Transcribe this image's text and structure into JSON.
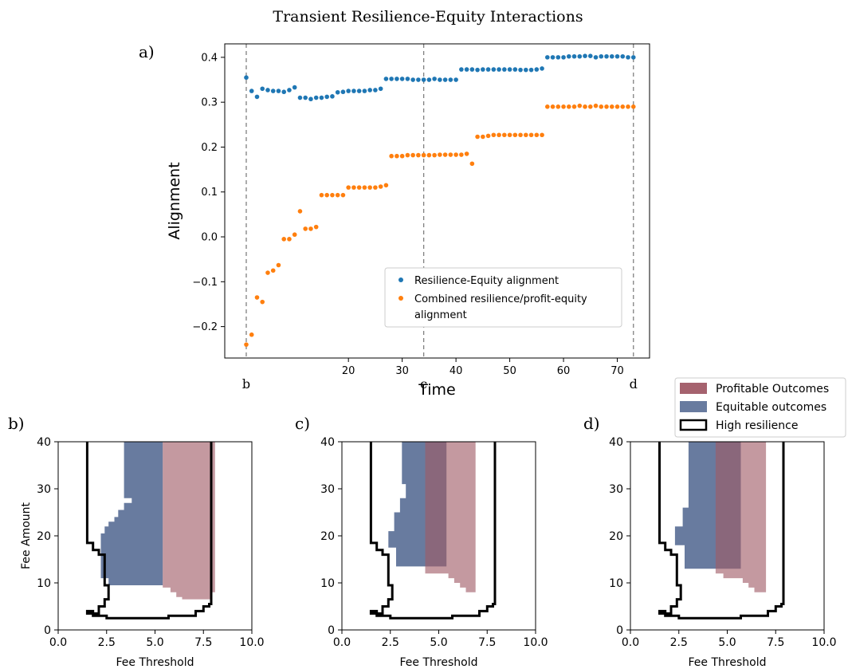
{
  "figure": {
    "title": "Transient Resilience-Equity Interactions",
    "panel_labels": {
      "a": "a)",
      "b": "b)",
      "c": "c)",
      "d": "d)"
    }
  },
  "colors": {
    "series_blue": "#1f77b4",
    "series_orange": "#ff7f0e",
    "profitable": "#a05a66",
    "equitable": "#5b7097",
    "overlap": "#3d4a70",
    "resilience_line": "#000000"
  },
  "chart_data": [
    {
      "type": "scatter",
      "panel": "a)",
      "title": "",
      "xlabel": "Time",
      "ylabel": "Alignment",
      "xlim": [
        -3,
        76
      ],
      "ylim": [
        -0.27,
        0.43
      ],
      "x_ticks": [
        20,
        30,
        40,
        50,
        60,
        70
      ],
      "y_ticks": [
        -0.2,
        -0.1,
        0.0,
        0.1,
        0.2,
        0.3,
        0.4
      ],
      "y_tick_labels": [
        "−0.2",
        "−0.1",
        "0.0",
        "0.1",
        "0.2",
        "0.3",
        "0.4"
      ],
      "grid": false,
      "legend_position": "lower-right",
      "vlines": [
        {
          "x": 1,
          "label": "b"
        },
        {
          "x": 34,
          "label": "c"
        },
        {
          "x": 73,
          "label": "d"
        }
      ],
      "series": [
        {
          "name": "Resilience-Equity alignment",
          "color": "#1f77b4",
          "x": [
            1,
            2,
            3,
            4,
            5,
            6,
            7,
            8,
            9,
            10,
            11,
            12,
            13,
            14,
            15,
            16,
            17,
            18,
            19,
            20,
            21,
            22,
            23,
            24,
            25,
            26,
            27,
            28,
            29,
            30,
            31,
            32,
            33,
            34,
            35,
            36,
            37,
            38,
            39,
            40,
            41,
            42,
            43,
            44,
            45,
            46,
            47,
            48,
            49,
            50,
            51,
            52,
            53,
            54,
            55,
            56,
            57,
            58,
            59,
            60,
            61,
            62,
            63,
            64,
            65,
            66,
            67,
            68,
            69,
            70,
            71,
            72,
            73
          ],
          "y": [
            0.355,
            0.325,
            0.312,
            0.33,
            0.327,
            0.325,
            0.325,
            0.323,
            0.327,
            0.333,
            0.31,
            0.31,
            0.307,
            0.31,
            0.31,
            0.312,
            0.313,
            0.322,
            0.323,
            0.325,
            0.325,
            0.325,
            0.325,
            0.327,
            0.327,
            0.33,
            0.352,
            0.352,
            0.352,
            0.352,
            0.352,
            0.35,
            0.35,
            0.35,
            0.35,
            0.352,
            0.35,
            0.35,
            0.35,
            0.35,
            0.373,
            0.373,
            0.373,
            0.372,
            0.373,
            0.373,
            0.373,
            0.373,
            0.373,
            0.373,
            0.373,
            0.372,
            0.372,
            0.372,
            0.373,
            0.375,
            0.4,
            0.4,
            0.4,
            0.4,
            0.402,
            0.402,
            0.402,
            0.403,
            0.403,
            0.4,
            0.402,
            0.402,
            0.402,
            0.402,
            0.402,
            0.4,
            0.4
          ]
        },
        {
          "name": "Combined resilience/profit-equity alignment",
          "color": "#ff7f0e",
          "x": [
            1,
            2,
            3,
            4,
            5,
            6,
            7,
            8,
            9,
            10,
            11,
            12,
            13,
            14,
            15,
            16,
            17,
            18,
            19,
            20,
            21,
            22,
            23,
            24,
            25,
            26,
            27,
            28,
            29,
            30,
            31,
            32,
            33,
            34,
            35,
            36,
            37,
            38,
            39,
            40,
            41,
            42,
            43,
            44,
            45,
            46,
            47,
            48,
            49,
            50,
            51,
            52,
            53,
            54,
            55,
            56,
            57,
            58,
            59,
            60,
            61,
            62,
            63,
            64,
            65,
            66,
            67,
            68,
            69,
            70,
            71,
            72,
            73
          ],
          "y": [
            -0.24,
            -0.218,
            -0.135,
            -0.145,
            -0.08,
            -0.075,
            -0.063,
            -0.005,
            -0.005,
            0.005,
            0.057,
            0.018,
            0.018,
            0.022,
            0.093,
            0.093,
            0.093,
            0.093,
            0.093,
            0.11,
            0.11,
            0.11,
            0.11,
            0.11,
            0.11,
            0.112,
            0.115,
            0.18,
            0.18,
            0.18,
            0.182,
            0.182,
            0.182,
            0.182,
            0.182,
            0.182,
            0.183,
            0.183,
            0.183,
            0.183,
            0.183,
            0.185,
            0.163,
            0.223,
            0.223,
            0.225,
            0.227,
            0.227,
            0.227,
            0.227,
            0.227,
            0.227,
            0.227,
            0.227,
            0.227,
            0.227,
            0.29,
            0.29,
            0.29,
            0.29,
            0.29,
            0.29,
            0.292,
            0.29,
            0.29,
            0.292,
            0.29,
            0.29,
            0.29,
            0.29,
            0.29,
            0.29,
            0.29
          ]
        }
      ]
    },
    {
      "type": "area",
      "panel": "b)",
      "xlabel": "Fee Threshold",
      "ylabel": "Fee Amount",
      "xlim": [
        0,
        10
      ],
      "ylim": [
        0,
        40
      ],
      "x_tick_labels": [
        "0.0",
        "2.5",
        "5.0",
        "7.5",
        "10.0"
      ],
      "y_tick_labels": [
        "0",
        "10",
        "20",
        "30",
        "40"
      ],
      "regions": {
        "Equitable outcomes": [
          [
            3.4,
            40
          ],
          [
            5.4,
            40
          ],
          [
            5.4,
            9.5
          ],
          [
            2.6,
            9.5
          ],
          [
            2.6,
            11
          ],
          [
            2.2,
            11
          ],
          [
            2.2,
            20.5
          ],
          [
            2.4,
            20.5
          ],
          [
            2.4,
            22
          ],
          [
            2.6,
            22
          ],
          [
            2.6,
            23
          ],
          [
            2.9,
            23
          ],
          [
            2.9,
            24
          ],
          [
            3.1,
            24
          ],
          [
            3.1,
            25.5
          ],
          [
            3.4,
            25.5
          ],
          [
            3.4,
            27
          ],
          [
            3.8,
            27
          ],
          [
            3.8,
            28
          ],
          [
            3.4,
            28
          ]
        ],
        "Profitable Outcomes": [
          [
            5.4,
            40
          ],
          [
            8.1,
            40
          ],
          [
            8.1,
            8
          ],
          [
            7.9,
            8
          ],
          [
            7.9,
            6.5
          ],
          [
            6.4,
            6.5
          ],
          [
            6.4,
            7
          ],
          [
            6.1,
            7
          ],
          [
            6.1,
            8
          ],
          [
            5.8,
            8
          ],
          [
            5.8,
            9
          ],
          [
            5.4,
            9
          ]
        ],
        "High resilience": [
          [
            1.5,
            40
          ],
          [
            1.5,
            18.5
          ],
          [
            1.8,
            18.5
          ],
          [
            1.8,
            17
          ],
          [
            2.1,
            17
          ],
          [
            2.1,
            16
          ],
          [
            2.4,
            16
          ],
          [
            2.4,
            9.5
          ],
          [
            2.6,
            9.5
          ],
          [
            2.6,
            6.5
          ],
          [
            2.4,
            6.5
          ],
          [
            2.4,
            5
          ],
          [
            2.1,
            5
          ],
          [
            2.1,
            3.5
          ],
          [
            1.8,
            3.5
          ],
          [
            1.8,
            4
          ],
          [
            1.5,
            4
          ],
          [
            1.5,
            3.5
          ],
          [
            1.8,
            3.5
          ],
          [
            1.8,
            3
          ],
          [
            2.5,
            3
          ],
          [
            2.5,
            2.5
          ],
          [
            5.7,
            2.5
          ],
          [
            5.7,
            3
          ],
          [
            7.1,
            3
          ],
          [
            7.1,
            4
          ],
          [
            7.5,
            4
          ],
          [
            7.5,
            5
          ],
          [
            7.8,
            5
          ],
          [
            7.8,
            5.5
          ],
          [
            7.9,
            5.5
          ],
          [
            7.9,
            40
          ]
        ]
      }
    },
    {
      "type": "area",
      "panel": "c)",
      "xlabel": "Fee Threshold",
      "ylabel": "",
      "xlim": [
        0,
        10
      ],
      "ylim": [
        0,
        40
      ],
      "x_tick_labels": [
        "0.0",
        "2.5",
        "5.0",
        "7.5",
        "10.0"
      ],
      "y_tick_labels": [
        "0",
        "10",
        "20",
        "30",
        "40"
      ],
      "regions": {
        "Equitable outcomes": [
          [
            3.1,
            40
          ],
          [
            5.4,
            40
          ],
          [
            5.4,
            13.5
          ],
          [
            2.8,
            13.5
          ],
          [
            2.8,
            17.5
          ],
          [
            2.4,
            17.5
          ],
          [
            2.4,
            21
          ],
          [
            2.7,
            21
          ],
          [
            2.7,
            25
          ],
          [
            3.0,
            25
          ],
          [
            3.0,
            28
          ],
          [
            3.3,
            28
          ],
          [
            3.3,
            31
          ],
          [
            3.1,
            31
          ]
        ],
        "Profitable Outcomes": [
          [
            4.3,
            40
          ],
          [
            6.9,
            40
          ],
          [
            6.9,
            8
          ],
          [
            6.4,
            8
          ],
          [
            6.4,
            9
          ],
          [
            6.1,
            9
          ],
          [
            6.1,
            10
          ],
          [
            5.8,
            10
          ],
          [
            5.8,
            11
          ],
          [
            5.5,
            11
          ],
          [
            5.5,
            12
          ],
          [
            4.3,
            12
          ]
        ],
        "High resilience": [
          [
            1.5,
            40
          ],
          [
            1.5,
            18.5
          ],
          [
            1.8,
            18.5
          ],
          [
            1.8,
            17
          ],
          [
            2.1,
            17
          ],
          [
            2.1,
            16
          ],
          [
            2.4,
            16
          ],
          [
            2.4,
            9.5
          ],
          [
            2.6,
            9.5
          ],
          [
            2.6,
            6.5
          ],
          [
            2.4,
            6.5
          ],
          [
            2.4,
            5
          ],
          [
            2.1,
            5
          ],
          [
            2.1,
            3.5
          ],
          [
            1.8,
            3.5
          ],
          [
            1.8,
            4
          ],
          [
            1.5,
            4
          ],
          [
            1.5,
            3.5
          ],
          [
            1.8,
            3.5
          ],
          [
            1.8,
            3
          ],
          [
            2.5,
            3
          ],
          [
            2.5,
            2.5
          ],
          [
            5.7,
            2.5
          ],
          [
            5.7,
            3
          ],
          [
            7.1,
            3
          ],
          [
            7.1,
            4
          ],
          [
            7.5,
            4
          ],
          [
            7.5,
            5
          ],
          [
            7.8,
            5
          ],
          [
            7.8,
            5.5
          ],
          [
            7.9,
            5.5
          ],
          [
            7.9,
            40
          ]
        ]
      }
    },
    {
      "type": "area",
      "panel": "d)",
      "xlabel": "Fee Threshold",
      "ylabel": "",
      "xlim": [
        0,
        10
      ],
      "ylim": [
        0,
        40
      ],
      "x_tick_labels": [
        "0.0",
        "2.5",
        "5.0",
        "7.5",
        "10.0"
      ],
      "y_tick_labels": [
        "0",
        "10",
        "20",
        "30",
        "40"
      ],
      "regions": {
        "Equitable outcomes": [
          [
            3.0,
            40
          ],
          [
            5.7,
            40
          ],
          [
            5.7,
            13
          ],
          [
            2.8,
            13
          ],
          [
            2.8,
            18
          ],
          [
            2.3,
            18
          ],
          [
            2.3,
            22
          ],
          [
            2.7,
            22
          ],
          [
            2.7,
            26
          ],
          [
            3.0,
            26
          ],
          [
            3.0,
            30
          ]
        ],
        "Profitable Outcomes": [
          [
            4.4,
            40
          ],
          [
            7.0,
            40
          ],
          [
            7.0,
            8
          ],
          [
            6.4,
            8
          ],
          [
            6.4,
            9
          ],
          [
            6.1,
            9
          ],
          [
            6.1,
            10
          ],
          [
            5.8,
            10
          ],
          [
            5.8,
            11
          ],
          [
            4.8,
            11
          ],
          [
            4.8,
            12
          ],
          [
            4.4,
            12
          ]
        ],
        "High resilience": [
          [
            1.5,
            40
          ],
          [
            1.5,
            18.5
          ],
          [
            1.8,
            18.5
          ],
          [
            1.8,
            17
          ],
          [
            2.1,
            17
          ],
          [
            2.1,
            16
          ],
          [
            2.4,
            16
          ],
          [
            2.4,
            9.5
          ],
          [
            2.6,
            9.5
          ],
          [
            2.6,
            6.5
          ],
          [
            2.4,
            6.5
          ],
          [
            2.4,
            5
          ],
          [
            2.1,
            5
          ],
          [
            2.1,
            3.5
          ],
          [
            1.8,
            3.5
          ],
          [
            1.8,
            4
          ],
          [
            1.5,
            4
          ],
          [
            1.5,
            3.5
          ],
          [
            1.8,
            3.5
          ],
          [
            1.8,
            3
          ],
          [
            2.5,
            3
          ],
          [
            2.5,
            2.5
          ],
          [
            5.7,
            2.5
          ],
          [
            5.7,
            3
          ],
          [
            7.1,
            3
          ],
          [
            7.1,
            4
          ],
          [
            7.5,
            4
          ],
          [
            7.5,
            5
          ],
          [
            7.8,
            5
          ],
          [
            7.8,
            5.5
          ],
          [
            7.9,
            5.5
          ],
          [
            7.9,
            40
          ]
        ]
      }
    }
  ],
  "region_legend": {
    "items": [
      {
        "label": "Profitable Outcomes",
        "color": "#a05a66",
        "kind": "fill"
      },
      {
        "label": "Equitable outcomes",
        "color": "#5b7097",
        "kind": "fill"
      },
      {
        "label": "High resilience",
        "color": "#000000",
        "kind": "outline"
      }
    ]
  }
}
